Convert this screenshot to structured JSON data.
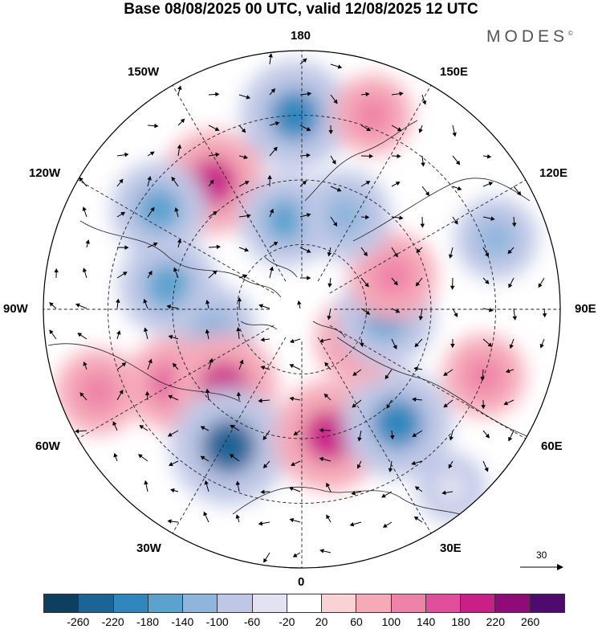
{
  "title": "Base 08/08/2025 00 UTC, valid 12/08/2025 12 UTC",
  "brand": "MODES",
  "brand_mark": "©",
  "map_labels": {
    "top": "180",
    "bottom": "0",
    "left": "90W",
    "right": "90E",
    "nw_upper": "150W",
    "nw_lower": "120W",
    "ne_upper": "150E",
    "ne_lower": "120E",
    "sw_upper": "60W",
    "sw_lower": "30W",
    "se_upper": "60E",
    "se_lower": "30E"
  },
  "vector_scale_label": "30",
  "colorbar": {
    "colors": [
      "#0d3f5f",
      "#1a6496",
      "#2f87bd",
      "#5aa3cf",
      "#8fb5dc",
      "#bfc7e6",
      "#e3e2f2",
      "#ffffff",
      "#f9d2d6",
      "#f5aab8",
      "#ef82a8",
      "#e14e9b",
      "#c91f87",
      "#8e0b78",
      "#4f0a6e"
    ],
    "ticks": [
      "-260",
      "-220",
      "-180",
      "-140",
      "-100",
      "-60",
      "-20",
      "20",
      "60",
      "100",
      "140",
      "180",
      "220",
      "260"
    ]
  },
  "anomaly_cells": [
    {
      "lon": -178,
      "colat": 30,
      "value": -210
    },
    {
      "lon": -145,
      "colat": 24,
      "value": 190
    },
    {
      "lon": -170,
      "colat": 14,
      "value": -150
    },
    {
      "lon": -125,
      "colat": 27,
      "value": -160
    },
    {
      "lon": -100,
      "colat": 21,
      "value": -170
    },
    {
      "lon": -78,
      "colat": 14,
      "value": -120
    },
    {
      "lon": -60,
      "colat": 23,
      "value": 150
    },
    {
      "lon": -45,
      "colat": 17,
      "value": 200
    },
    {
      "lon": -68,
      "colat": 34,
      "value": 120
    },
    {
      "lon": -28,
      "colat": 24,
      "value": -240
    },
    {
      "lon": 12,
      "colat": 20,
      "value": 210
    },
    {
      "lon": 40,
      "colat": 23,
      "value": -210
    },
    {
      "lon": 62,
      "colat": 10,
      "value": 130
    },
    {
      "lon": 85,
      "colat": 13,
      "value": -170
    },
    {
      "lon": 110,
      "colat": 15,
      "value": 130
    },
    {
      "lon": 110,
      "colat": 32,
      "value": -110
    },
    {
      "lon": 155,
      "colat": 16,
      "value": -140
    },
    {
      "lon": 160,
      "colat": 32,
      "value": 100
    },
    {
      "lon": 70,
      "colat": 30,
      "value": 110
    },
    {
      "lon": 40,
      "colat": 36,
      "value": -60
    }
  ]
}
